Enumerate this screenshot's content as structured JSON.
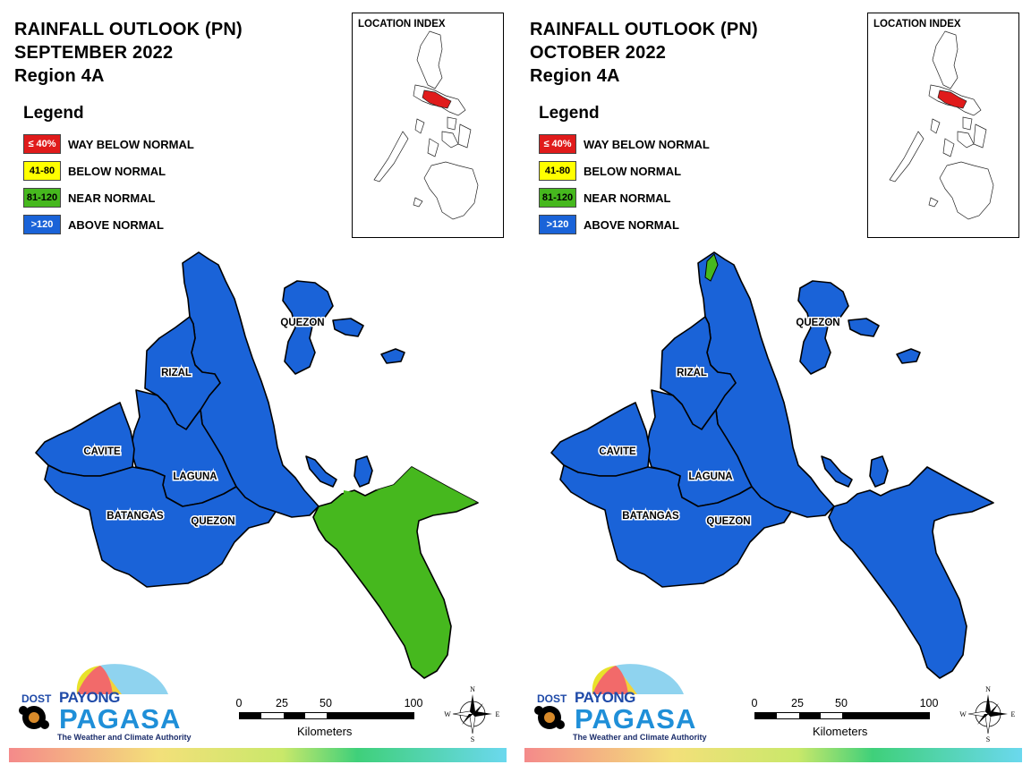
{
  "panels": [
    {
      "title_line1": "RAINFALL OUTLOOK (PN)",
      "title_line2": "SEPTEMBER 2022",
      "title_line3": "Region 4A",
      "outlook_state": "september",
      "provinces": {
        "cavite": "CAVITE",
        "rizal": "RIZAL",
        "laguna": "LAGUNA",
        "batangas": "BATANGAS",
        "quezon_north": "QUEZON",
        "quezon_south": "QUEZON"
      },
      "province_categories": {
        "cavite": "above_normal",
        "rizal": "above_normal",
        "laguna": "above_normal",
        "batangas": "above_normal",
        "quezon_north": "above_normal",
        "quezon_south": "near_normal"
      }
    },
    {
      "title_line1": "RAINFALL OUTLOOK (PN)",
      "title_line2": "OCTOBER 2022",
      "title_line3": "Region 4A",
      "outlook_state": "october",
      "provinces": {
        "cavite": "CAVITE",
        "rizal": "RIZAL",
        "laguna": "LAGUNA",
        "batangas": "BATANGAS",
        "quezon_north": "QUEZON",
        "quezon_south": "QUEZON"
      },
      "province_categories": {
        "cavite": "above_normal",
        "rizal": "above_normal",
        "laguna": "above_normal",
        "batangas": "above_normal",
        "quezon_north": "above_normal",
        "quezon_south": "above_normal"
      }
    }
  ],
  "legend": {
    "title": "Legend",
    "items": [
      {
        "range": "≤ 40%",
        "label": "WAY BELOW NORMAL",
        "color": "#e01b1b",
        "text_color": "#ffffff",
        "category": "way_below_normal"
      },
      {
        "range": "41-80",
        "label": "BELOW NORMAL",
        "color": "#ffff00",
        "text_color": "#000000",
        "category": "below_normal"
      },
      {
        "range": "81-120",
        "label": "NEAR NORMAL",
        "color": "#46b81e",
        "text_color": "#000000",
        "category": "near_normal"
      },
      {
        "range": ">120",
        "label": "ABOVE NORMAL",
        "color": "#1a63d8",
        "text_color": "#ffffff",
        "category": "above_normal"
      }
    ]
  },
  "location_index": {
    "title": "LOCATION INDEX",
    "highlight_color": "#e01b1b"
  },
  "scale": {
    "ticks": [
      "0",
      "25",
      "50",
      "100"
    ],
    "unit": "Kilometers"
  },
  "compass": {
    "n": "N",
    "s": "S",
    "e": "E",
    "w": "W"
  },
  "logo": {
    "dost": "DOST",
    "payong": "PAYONG",
    "pagasa": "PAGASA",
    "tagline": "The Weather and Climate Authority"
  },
  "colors": {
    "above_normal": "#1a63d8",
    "near_normal": "#46b81e",
    "outline": "#000000"
  }
}
